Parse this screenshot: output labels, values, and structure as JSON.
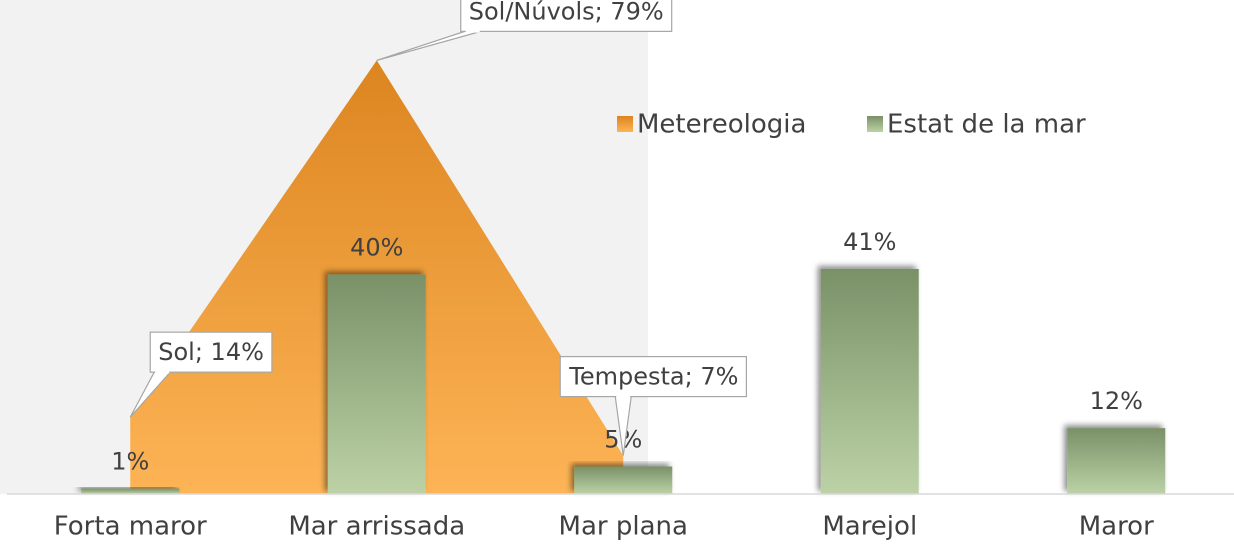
{
  "chart_data": {
    "type": "bar",
    "categories": [
      "Forta maror",
      "Mar arrissada",
      "Mar plana",
      "Marejol",
      "Maror"
    ],
    "series": [
      {
        "name": "Metereologia",
        "type": "area",
        "color": "#f39a2e",
        "values": [
          14,
          79,
          7,
          null,
          null
        ],
        "value_labels": [
          "Sol; 14%",
          "Sol/Núvols; 79%",
          "Tempesta; 7%",
          null,
          null
        ]
      },
      {
        "name": "Estat de la mar",
        "type": "bar",
        "color": "#94ad80",
        "values": [
          1,
          40,
          5,
          41,
          12
        ],
        "value_labels": [
          "1%",
          "40%",
          "5%",
          "41%",
          "12%"
        ]
      }
    ],
    "ylim": [
      0,
      90
    ],
    "legend": "top-right"
  }
}
